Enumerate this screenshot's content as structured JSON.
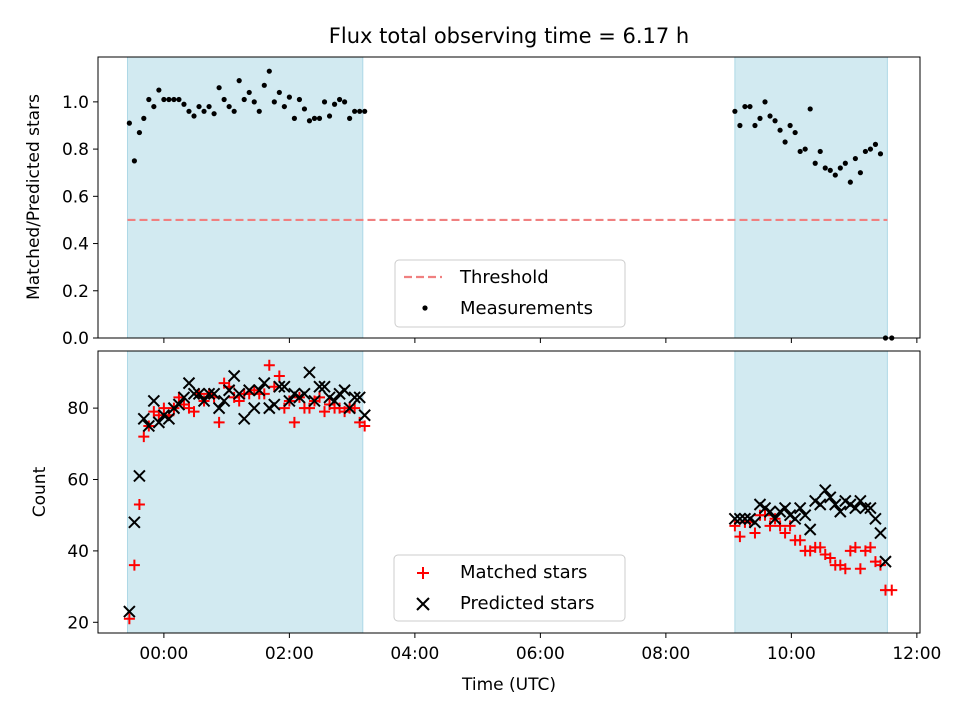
{
  "title": "Flux total observing time = 6.17 h",
  "colors": {
    "shade": "#add8e6",
    "threshold": "#f08080",
    "matched": "#ff0000",
    "predicted": "#000000",
    "measurements": "#000000"
  },
  "chart_data": [
    {
      "type": "scatter",
      "ylabel": "Matched/Predicted stars",
      "xlabel": "",
      "xlim_hours": [
        -1.05,
        12.05
      ],
      "ylim": [
        0.0,
        1.19
      ],
      "yticks": [
        0.0,
        0.2,
        0.4,
        0.6,
        0.8,
        1.0
      ],
      "ytick_labels": [
        "0.0",
        "0.2",
        "0.4",
        "0.6",
        "0.8",
        "1.0"
      ],
      "shaded_spans_hours": [
        [
          -0.58,
          3.17
        ],
        [
          9.1,
          11.53
        ]
      ],
      "threshold": 0.5,
      "legend": {
        "position": "lower-center",
        "entries": [
          "Threshold",
          "Measurements"
        ]
      },
      "series": [
        {
          "name": "Measurements",
          "marker": "dot",
          "x": [
            -0.55,
            -0.47,
            -0.39,
            -0.32,
            -0.24,
            -0.16,
            -0.08,
            0.0,
            0.08,
            0.16,
            0.24,
            0.32,
            0.4,
            0.48,
            0.56,
            0.64,
            0.72,
            0.8,
            0.88,
            0.96,
            1.04,
            1.12,
            1.2,
            1.28,
            1.36,
            1.44,
            1.52,
            1.6,
            1.68,
            1.76,
            1.84,
            1.92,
            2.0,
            2.08,
            2.16,
            2.24,
            2.32,
            2.4,
            2.48,
            2.56,
            2.64,
            2.72,
            2.8,
            2.88,
            2.96,
            3.04,
            3.12,
            3.2,
            9.1,
            9.18,
            9.26,
            9.34,
            9.42,
            9.5,
            9.58,
            9.66,
            9.74,
            9.82,
            9.9,
            9.98,
            10.06,
            10.14,
            10.22,
            10.3,
            10.38,
            10.46,
            10.54,
            10.62,
            10.7,
            10.78,
            10.86,
            10.94,
            11.02,
            11.1,
            11.18,
            11.26,
            11.34,
            11.42,
            11.5,
            11.6
          ],
          "y": [
            0.91,
            0.75,
            0.87,
            0.93,
            1.01,
            0.98,
            1.05,
            1.01,
            1.01,
            1.01,
            1.01,
            0.99,
            0.96,
            0.94,
            0.98,
            0.96,
            0.98,
            0.95,
            1.06,
            1.01,
            0.98,
            0.96,
            1.09,
            1.01,
            1.04,
            1.0,
            0.96,
            1.07,
            1.13,
            1.0,
            1.04,
            0.98,
            1.02,
            0.93,
            1.01,
            0.97,
            0.92,
            0.93,
            0.93,
            1.0,
            0.94,
            0.99,
            1.01,
            1.0,
            0.93,
            0.96,
            0.96,
            0.96,
            0.96,
            0.9,
            0.98,
            0.98,
            0.9,
            0.93,
            1.0,
            0.94,
            0.92,
            0.88,
            0.83,
            0.9,
            0.87,
            0.79,
            0.8,
            0.97,
            0.74,
            0.79,
            0.72,
            0.71,
            0.69,
            0.72,
            0.74,
            0.66,
            0.76,
            0.7,
            0.79,
            0.8,
            0.82,
            0.78,
            0.0,
            0.0
          ]
        }
      ]
    },
    {
      "type": "scatter",
      "ylabel": "Count",
      "xlabel": "Time (UTC)",
      "xlim_hours": [
        -1.05,
        12.05
      ],
      "ylim": [
        17,
        96
      ],
      "yticks": [
        20,
        40,
        60,
        80
      ],
      "ytick_labels": [
        "20",
        "40",
        "60",
        "80"
      ],
      "xticks_hours": [
        0,
        2,
        4,
        6,
        8,
        10,
        12
      ],
      "xtick_labels": [
        "00:00",
        "02:00",
        "04:00",
        "06:00",
        "08:00",
        "10:00",
        "12:00"
      ],
      "shaded_spans_hours": [
        [
          -0.58,
          3.17
        ],
        [
          9.1,
          11.53
        ]
      ],
      "legend": {
        "position": "lower-center",
        "entries": [
          "Matched stars",
          "Predicted stars"
        ]
      },
      "series": [
        {
          "name": "Matched stars",
          "marker": "plus",
          "x": [
            -0.55,
            -0.47,
            -0.39,
            -0.32,
            -0.24,
            -0.16,
            -0.08,
            0.0,
            0.08,
            0.16,
            0.24,
            0.32,
            0.4,
            0.48,
            0.56,
            0.64,
            0.72,
            0.8,
            0.88,
            0.96,
            1.04,
            1.12,
            1.2,
            1.28,
            1.36,
            1.44,
            1.52,
            1.6,
            1.68,
            1.76,
            1.84,
            1.92,
            2.0,
            2.08,
            2.16,
            2.24,
            2.32,
            2.4,
            2.48,
            2.56,
            2.64,
            2.72,
            2.8,
            2.88,
            2.96,
            3.04,
            3.12,
            3.2,
            9.1,
            9.18,
            9.26,
            9.34,
            9.42,
            9.5,
            9.58,
            9.66,
            9.74,
            9.82,
            9.9,
            9.98,
            10.06,
            10.14,
            10.22,
            10.3,
            10.38,
            10.46,
            10.54,
            10.62,
            10.7,
            10.78,
            10.86,
            10.94,
            11.02,
            11.1,
            11.18,
            11.26,
            11.34,
            11.42,
            11.5,
            11.6
          ],
          "y": [
            21,
            36,
            53,
            72,
            75,
            79,
            78,
            80,
            78,
            80,
            83,
            81,
            80,
            79,
            84,
            82,
            84,
            83,
            76,
            87,
            86,
            83,
            82,
            84,
            84,
            85,
            84,
            84,
            92,
            86,
            89,
            80,
            82,
            76,
            83,
            80,
            80,
            82,
            83,
            79,
            81,
            80,
            80,
            79,
            80,
            80,
            76,
            75,
            47,
            44,
            48,
            48,
            45,
            50,
            50,
            47,
            49,
            47,
            45,
            47,
            43,
            43,
            40,
            40,
            41,
            41,
            39,
            38,
            36,
            36,
            35,
            40,
            41,
            35,
            40,
            41,
            37,
            36,
            29,
            29
          ]
        },
        {
          "name": "Predicted stars",
          "marker": "x",
          "x": [
            -0.55,
            -0.47,
            -0.39,
            -0.32,
            -0.24,
            -0.16,
            -0.08,
            0.0,
            0.08,
            0.16,
            0.24,
            0.32,
            0.4,
            0.48,
            0.56,
            0.64,
            0.72,
            0.8,
            0.88,
            0.96,
            1.04,
            1.12,
            1.2,
            1.28,
            1.36,
            1.44,
            1.52,
            1.6,
            1.68,
            1.76,
            1.84,
            1.92,
            2.0,
            2.08,
            2.16,
            2.24,
            2.32,
            2.4,
            2.48,
            2.56,
            2.64,
            2.72,
            2.8,
            2.88,
            2.96,
            3.04,
            3.12,
            3.2,
            9.1,
            9.18,
            9.26,
            9.34,
            9.42,
            9.5,
            9.58,
            9.66,
            9.74,
            9.82,
            9.9,
            9.98,
            10.06,
            10.14,
            10.22,
            10.3,
            10.38,
            10.46,
            10.54,
            10.62,
            10.7,
            10.78,
            10.86,
            10.94,
            11.02,
            11.1,
            11.18,
            11.26,
            11.34,
            11.42,
            11.5
          ],
          "y": [
            23,
            48,
            61,
            77,
            75,
            82,
            76,
            78,
            77,
            80,
            81,
            83,
            87,
            84,
            84,
            82,
            84,
            84,
            80,
            82,
            85,
            89,
            84,
            77,
            85,
            80,
            85,
            87,
            80,
            81,
            86,
            86,
            82,
            84,
            83,
            84,
            90,
            82,
            86,
            86,
            83,
            82,
            84,
            85,
            80,
            83,
            83,
            78,
            49,
            49,
            49,
            49,
            48,
            53,
            52,
            51,
            49,
            51,
            52,
            50,
            49,
            52,
            50,
            46,
            54,
            53,
            57,
            55,
            53,
            51,
            54,
            53,
            52,
            54,
            52,
            52,
            49,
            45,
            37
          ]
        }
      ]
    }
  ]
}
